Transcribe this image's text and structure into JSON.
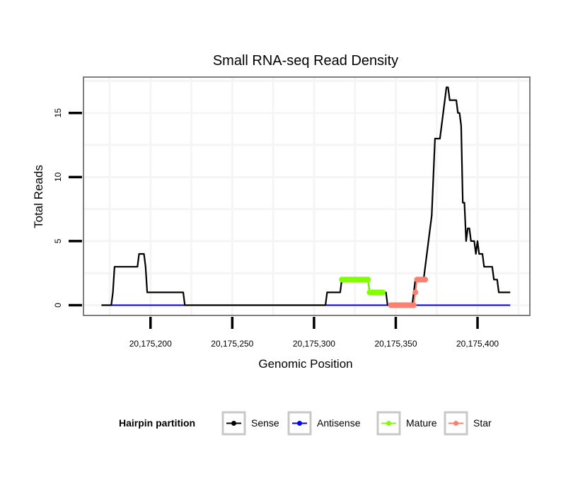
{
  "chart_data": {
    "type": "line",
    "title": "Small RNA-seq Read Density",
    "xlabel": "Genomic Position",
    "ylabel": "Total Reads",
    "xlim": [
      20175159,
      20175432
    ],
    "ylim": [
      -0.8,
      17.8
    ],
    "x_ticks": [
      20175200,
      20175250,
      20175300,
      20175350,
      20175400
    ],
    "x_tick_labels": [
      "20,175,200",
      "20,175,250",
      "20,175,300",
      "20,175,350",
      "20,175,400"
    ],
    "y_ticks": [
      0,
      5,
      10,
      15
    ],
    "y_tick_labels": [
      "0",
      "5",
      "10",
      "15"
    ],
    "grid": true,
    "legend": {
      "title": "Hairpin partition",
      "placement": "bottom",
      "entries": [
        {
          "name": "Sense",
          "color": "#000000"
        },
        {
          "name": "Antisense",
          "color": "#0000ff"
        },
        {
          "name": "Mature",
          "color": "#7fff00"
        },
        {
          "name": "Star",
          "color": "#fa8072"
        }
      ]
    },
    "series": [
      {
        "name": "Sense",
        "color": "#000000",
        "style": "line",
        "x": [
          20175170,
          20175176,
          20175177,
          20175178,
          20175185,
          20175192,
          20175193,
          20175196,
          20175197,
          20175198,
          20175205,
          20175215,
          20175220,
          20175221,
          20175250,
          20175300,
          20175307,
          20175308,
          20175316,
          20175317,
          20175330,
          20175333,
          20175334,
          20175340,
          20175344,
          20175345,
          20175360,
          20175361,
          20175362,
          20175363,
          20175366,
          20175367,
          20175368,
          20175370,
          20175371,
          20175372,
          20175373,
          20175374,
          20175375,
          20175376,
          20175377,
          20175378,
          20175379,
          20175380,
          20175381,
          20175382,
          20175383,
          20175384,
          20175385,
          20175386,
          20175387,
          20175388,
          20175389,
          20175390,
          20175391,
          20175392,
          20175393,
          20175394,
          20175395,
          20175396,
          20175397,
          20175398,
          20175399,
          20175400,
          20175401,
          20175402,
          20175403,
          20175404,
          20175405,
          20175406,
          20175407,
          20175408,
          20175409,
          20175410,
          20175411,
          20175412,
          20175413,
          20175414,
          20175415,
          20175416,
          20175417,
          20175418,
          20175419,
          20175420
        ],
        "y": [
          0,
          0,
          1,
          3,
          3,
          3,
          4,
          4,
          3,
          1,
          1,
          1,
          1,
          0,
          0,
          0,
          0,
          1,
          1,
          2,
          2,
          2,
          1,
          1,
          1,
          0,
          0,
          1,
          2,
          2,
          2,
          2,
          3,
          5,
          6,
          7,
          10,
          13,
          13,
          13,
          13,
          14,
          15,
          16,
          17,
          17,
          16,
          16,
          16,
          16,
          16,
          15,
          15,
          14,
          8,
          8,
          5,
          6,
          6,
          5,
          5,
          5,
          4,
          5,
          4,
          4,
          4,
          3,
          3,
          3,
          3,
          3,
          3,
          2,
          2,
          2,
          1,
          1,
          1,
          1,
          1,
          1,
          1,
          1
        ]
      },
      {
        "name": "Antisense",
        "color": "#0000ff",
        "style": "line",
        "x": [
          20175176,
          20175420
        ],
        "y": [
          0,
          0
        ]
      },
      {
        "name": "Mature",
        "color": "#7fff00",
        "style": "points",
        "x": [
          20175317,
          20175318,
          20175319,
          20175320,
          20175321,
          20175322,
          20175323,
          20175324,
          20175325,
          20175326,
          20175327,
          20175328,
          20175329,
          20175330,
          20175331,
          20175332,
          20175333,
          20175334,
          20175335,
          20175336,
          20175337,
          20175338,
          20175339,
          20175340,
          20175341,
          20175342
        ],
        "y": [
          2,
          2,
          2,
          2,
          2,
          2,
          2,
          2,
          2,
          2,
          2,
          2,
          2,
          2,
          2,
          2,
          2,
          1,
          1,
          1,
          1,
          1,
          1,
          1,
          1,
          1
        ]
      },
      {
        "name": "Star",
        "color": "#fa8072",
        "style": "points",
        "x": [
          20175347,
          20175348,
          20175349,
          20175350,
          20175351,
          20175352,
          20175353,
          20175354,
          20175355,
          20175356,
          20175357,
          20175358,
          20175359,
          20175360,
          20175361,
          20175362,
          20175363,
          20175364,
          20175365,
          20175366,
          20175367,
          20175368
        ],
        "y": [
          0,
          0,
          0,
          0,
          0,
          0,
          0,
          0,
          0,
          0,
          0,
          0,
          0,
          0,
          0,
          1,
          2,
          2,
          2,
          2,
          2,
          2
        ]
      }
    ]
  }
}
